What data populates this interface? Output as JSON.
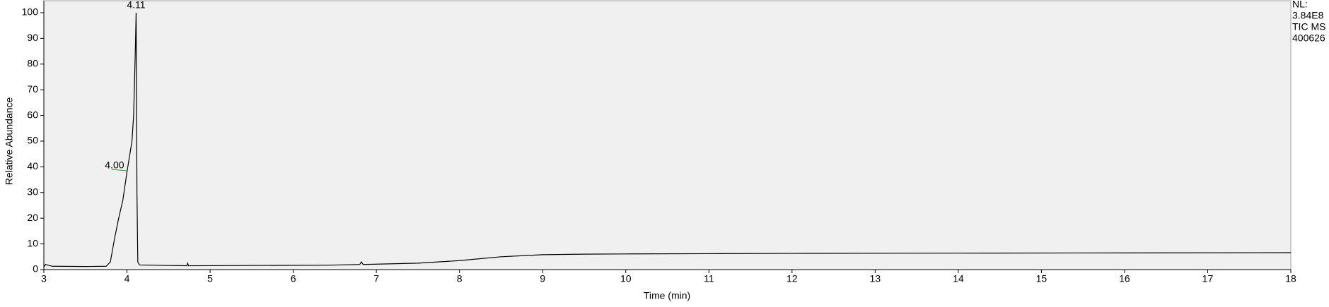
{
  "chart_data": {
    "type": "line",
    "x_label": "Time (min)",
    "y_label": "Relative Abundance",
    "info": [
      "NL:",
      "3.84E8",
      "TIC  MS",
      "400626"
    ],
    "x": [
      3.0,
      3.02,
      3.1,
      3.5,
      3.75,
      3.8,
      3.85,
      3.9,
      3.95,
      4.0,
      4.03,
      4.06,
      4.08,
      4.1,
      4.11,
      4.12,
      4.13,
      4.15,
      4.5,
      4.72,
      4.73,
      4.74,
      5.5,
      6.4,
      6.8,
      6.82,
      6.84,
      7.5,
      8.0,
      8.5,
      9.0,
      9.5,
      10.0,
      11.0,
      12.0,
      14.0,
      16.0,
      18.0
    ],
    "series": [
      {
        "color": "#000000",
        "values": [
          1,
          2,
          1.3,
          1.2,
          1.3,
          3,
          12,
          20,
          27,
          38,
          44,
          50,
          60,
          85,
          100,
          30,
          3,
          1.8,
          1.6,
          1.5,
          2.5,
          1.5,
          1.6,
          1.7,
          2,
          3,
          2,
          2.5,
          3.5,
          5,
          5.8,
          6,
          6.1,
          6.2,
          6.3,
          6.4,
          6.5,
          6.6
        ]
      }
    ],
    "annotations": [
      {
        "x": 4.11,
        "y": 100,
        "text": "4.11"
      },
      {
        "x": 4.0,
        "y": 39,
        "text": "4.00"
      }
    ],
    "xlim": [
      3,
      18
    ],
    "ylim": [
      0,
      100
    ],
    "xticks": [
      3,
      4,
      5,
      6,
      7,
      8,
      9,
      10,
      11,
      12,
      13,
      14,
      15,
      16,
      17,
      18
    ],
    "yticks": [
      0,
      10,
      20,
      30,
      40,
      50,
      60,
      70,
      80,
      90,
      100
    ],
    "plot_background": "#f0f0f0"
  }
}
